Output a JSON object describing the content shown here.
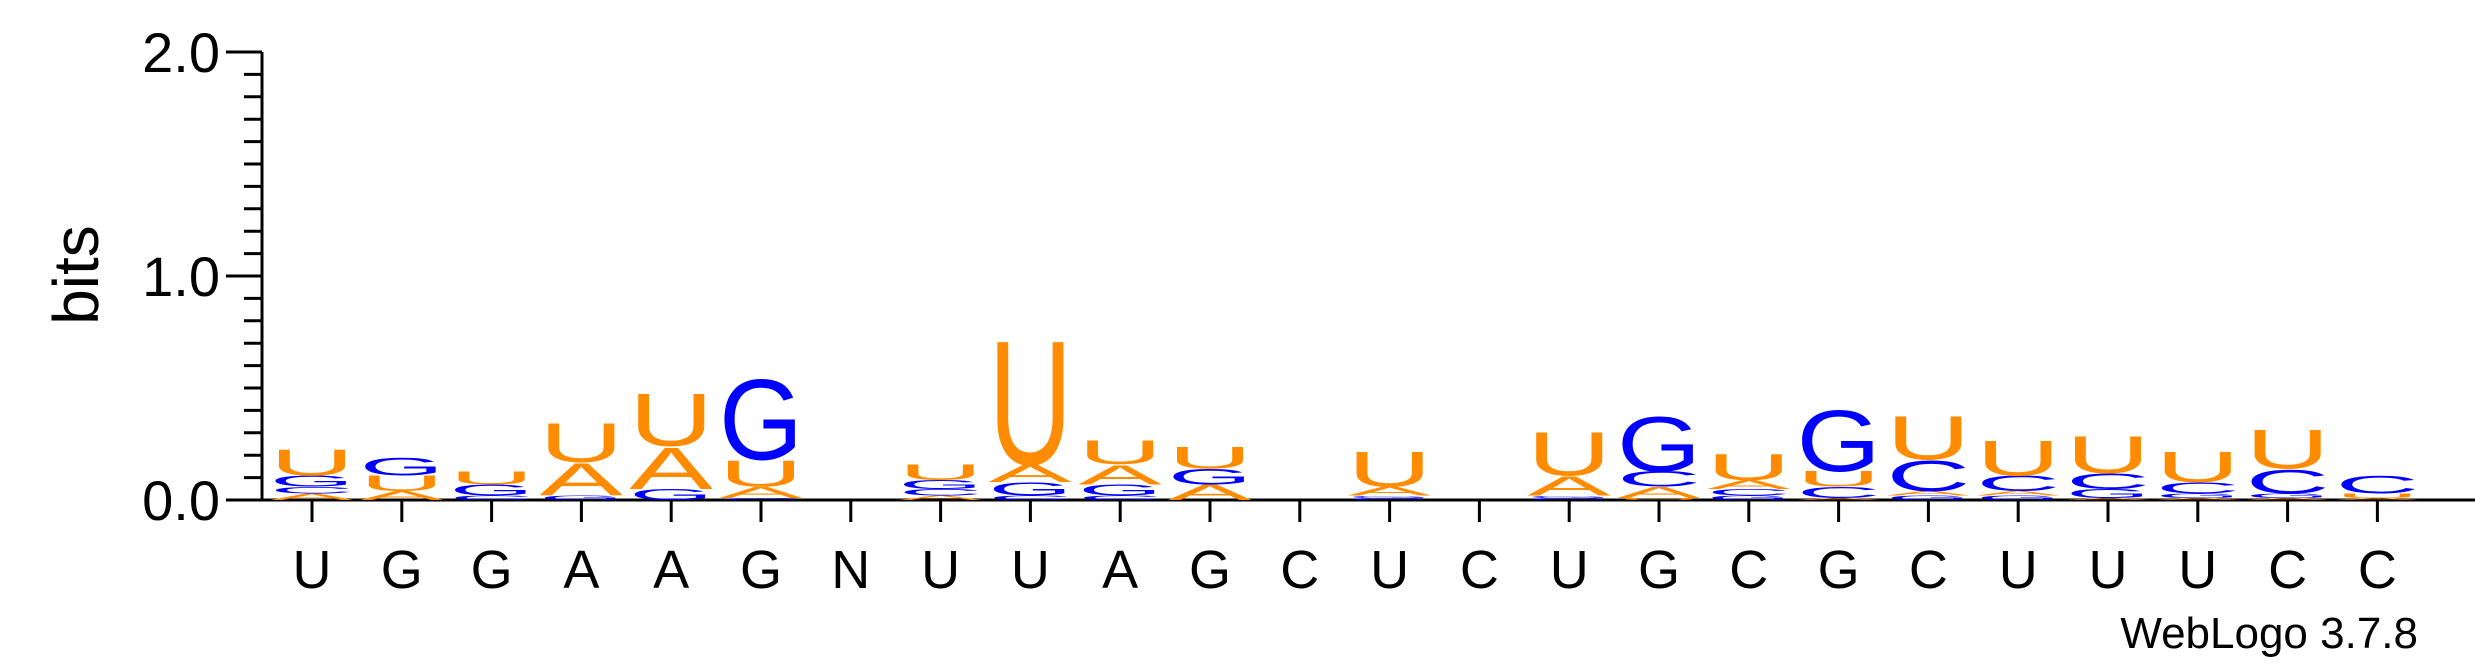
{
  "chart_data": {
    "type": "sequence-logo",
    "ylabel": "bits",
    "ylim": [
      0,
      2.0
    ],
    "yticks": [
      {
        "value": 0.0,
        "label": "0.0"
      },
      {
        "value": 1.0,
        "label": "1.0"
      },
      {
        "value": 2.0,
        "label": "2.0"
      }
    ],
    "colors": {
      "U": "#FF8C00",
      "A": "#FF8C00",
      "G": "#0000FF",
      "C": "#0000FF"
    },
    "positions": [
      {
        "label": "U",
        "stack": [
          {
            "letter": "A",
            "bits": 0.03
          },
          {
            "letter": "C",
            "bits": 0.03
          },
          {
            "letter": "G",
            "bits": 0.05
          },
          {
            "letter": "U",
            "bits": 0.12
          }
        ]
      },
      {
        "label": "G",
        "stack": [
          {
            "letter": "A",
            "bits": 0.04
          },
          {
            "letter": "U",
            "bits": 0.07
          },
          {
            "letter": "G",
            "bits": 0.08
          }
        ]
      },
      {
        "label": "G",
        "stack": [
          {
            "letter": "C",
            "bits": 0.02
          },
          {
            "letter": "G",
            "bits": 0.05
          },
          {
            "letter": "U",
            "bits": 0.06
          }
        ]
      },
      {
        "label": "A",
        "stack": [
          {
            "letter": "G",
            "bits": 0.02
          },
          {
            "letter": "A",
            "bits": 0.15
          },
          {
            "letter": "U",
            "bits": 0.18
          }
        ]
      },
      {
        "label": "A",
        "stack": [
          {
            "letter": "G",
            "bits": 0.05
          },
          {
            "letter": "A",
            "bits": 0.19
          },
          {
            "letter": "U",
            "bits": 0.24
          }
        ]
      },
      {
        "label": "G",
        "stack": [
          {
            "letter": "C",
            "bits": 0.01
          },
          {
            "letter": "A",
            "bits": 0.05
          },
          {
            "letter": "U",
            "bits": 0.12
          },
          {
            "letter": "G",
            "bits": 0.37
          }
        ]
      },
      {
        "label": "N",
        "stack": []
      },
      {
        "label": "U",
        "stack": [
          {
            "letter": "A",
            "bits": 0.02
          },
          {
            "letter": "C",
            "bits": 0.03
          },
          {
            "letter": "G",
            "bits": 0.04
          },
          {
            "letter": "U",
            "bits": 0.07
          }
        ]
      },
      {
        "label": "U",
        "stack": [
          {
            "letter": "C",
            "bits": 0.02
          },
          {
            "letter": "G",
            "bits": 0.06
          },
          {
            "letter": "A",
            "bits": 0.08
          },
          {
            "letter": "U",
            "bits": 0.57
          }
        ]
      },
      {
        "label": "A",
        "stack": [
          {
            "letter": "C",
            "bits": 0.02
          },
          {
            "letter": "G",
            "bits": 0.05
          },
          {
            "letter": "A",
            "bits": 0.09
          },
          {
            "letter": "U",
            "bits": 0.11
          }
        ]
      },
      {
        "label": "G",
        "stack": [
          {
            "letter": "A",
            "bits": 0.07
          },
          {
            "letter": "G",
            "bits": 0.07
          },
          {
            "letter": "U",
            "bits": 0.1
          }
        ]
      },
      {
        "label": "C",
        "stack": []
      },
      {
        "label": "U",
        "stack": [
          {
            "letter": "C",
            "bits": 0.01
          },
          {
            "letter": "G",
            "bits": 0.01
          },
          {
            "letter": "A",
            "bits": 0.04
          },
          {
            "letter": "U",
            "bits": 0.16
          }
        ]
      },
      {
        "label": "C",
        "stack": []
      },
      {
        "label": "U",
        "stack": [
          {
            "letter": "C",
            "bits": 0.01
          },
          {
            "letter": "G",
            "bits": 0.01
          },
          {
            "letter": "A",
            "bits": 0.09
          },
          {
            "letter": "U",
            "bits": 0.2
          }
        ]
      },
      {
        "label": "G",
        "stack": [
          {
            "letter": "U",
            "bits": 0.01
          },
          {
            "letter": "A",
            "bits": 0.05
          },
          {
            "letter": "C",
            "bits": 0.07
          },
          {
            "letter": "G",
            "bits": 0.25
          }
        ]
      },
      {
        "label": "C",
        "stack": [
          {
            "letter": "G",
            "bits": 0.02
          },
          {
            "letter": "C",
            "bits": 0.03
          },
          {
            "letter": "A",
            "bits": 0.04
          },
          {
            "letter": "U",
            "bits": 0.12
          }
        ]
      },
      {
        "label": "G",
        "stack": [
          {
            "letter": "A",
            "bits": 0.01
          },
          {
            "letter": "C",
            "bits": 0.05
          },
          {
            "letter": "U",
            "bits": 0.07
          },
          {
            "letter": "G",
            "bits": 0.28
          }
        ]
      },
      {
        "label": "C",
        "stack": [
          {
            "letter": "G",
            "bits": 0.02
          },
          {
            "letter": "A",
            "bits": 0.02
          },
          {
            "letter": "C",
            "bits": 0.14
          },
          {
            "letter": "U",
            "bits": 0.2
          }
        ]
      },
      {
        "label": "U",
        "stack": [
          {
            "letter": "G",
            "bits": 0.02
          },
          {
            "letter": "A",
            "bits": 0.02
          },
          {
            "letter": "C",
            "bits": 0.07
          },
          {
            "letter": "U",
            "bits": 0.16
          }
        ]
      },
      {
        "label": "U",
        "stack": [
          {
            "letter": "A",
            "bits": 0.01
          },
          {
            "letter": "G",
            "bits": 0.04
          },
          {
            "letter": "C",
            "bits": 0.07
          },
          {
            "letter": "U",
            "bits": 0.17
          }
        ]
      },
      {
        "label": "U",
        "stack": [
          {
            "letter": "A",
            "bits": 0.01
          },
          {
            "letter": "G",
            "bits": 0.02
          },
          {
            "letter": "C",
            "bits": 0.05
          },
          {
            "letter": "U",
            "bits": 0.14
          }
        ]
      },
      {
        "label": "C",
        "stack": [
          {
            "letter": "A",
            "bits": 0.01
          },
          {
            "letter": "G",
            "bits": 0.02
          },
          {
            "letter": "C",
            "bits": 0.11
          },
          {
            "letter": "U",
            "bits": 0.18
          }
        ]
      },
      {
        "label": "C",
        "stack": [
          {
            "letter": "A",
            "bits": 0.01
          },
          {
            "letter": "U",
            "bits": 0.02
          },
          {
            "letter": "C",
            "bits": 0.08
          }
        ]
      }
    ]
  },
  "credit": "WebLogo 3.7.8"
}
